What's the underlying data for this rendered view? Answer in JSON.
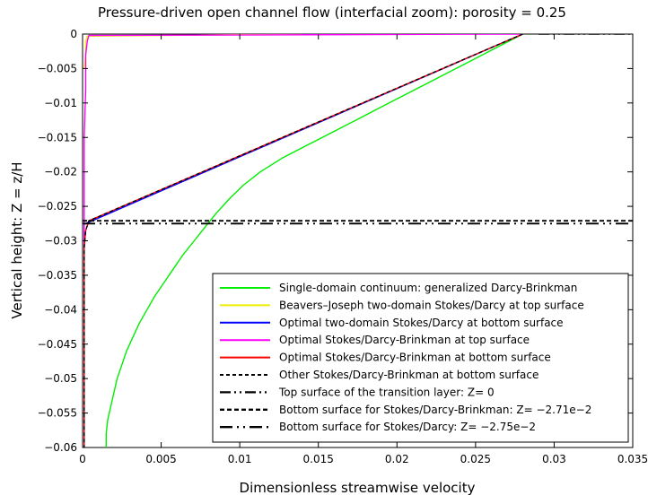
{
  "chart_data": {
    "type": "line",
    "title": "Pressure-driven open channel flow (interfacial zoom): porosity = 0.25",
    "xlabel": "Dimensionless streamwise velocity",
    "ylabel": "Vertical height: Z = z/H",
    "xlim": [
      0,
      0.035
    ],
    "ylim": [
      -0.06,
      0
    ],
    "xticks": [
      0,
      0.005,
      0.01,
      0.015,
      0.02,
      0.025,
      0.03,
      0.035
    ],
    "xtick_labels": [
      "0",
      "0.005",
      "0.01",
      "0.015",
      "0.02",
      "0.025",
      "0.03",
      "0.035"
    ],
    "yticks": [
      0,
      -0.005,
      -0.01,
      -0.015,
      -0.02,
      -0.025,
      -0.03,
      -0.035,
      -0.04,
      -0.045,
      -0.05,
      -0.055,
      -0.06
    ],
    "ytick_labels": [
      "0",
      "−0.005",
      "−0.01",
      "−0.015",
      "−0.02",
      "−0.025",
      "−0.03",
      "−0.035",
      "−0.04",
      "−0.045",
      "−0.05",
      "−0.055",
      "−0.06"
    ],
    "grid": false,
    "legend_position": "bottom-right",
    "series": [
      {
        "name": "Single-domain continuum: generalized Darcy-Brinkman",
        "color": "#00ee00",
        "dash": "solid",
        "width": 1.4,
        "points": [
          [
            0.028,
            0
          ],
          [
            0.0263,
            -0.002
          ],
          [
            0.0246,
            -0.004
          ],
          [
            0.0229,
            -0.006
          ],
          [
            0.0212,
            -0.008
          ],
          [
            0.0195,
            -0.01
          ],
          [
            0.0178,
            -0.012
          ],
          [
            0.0161,
            -0.014
          ],
          [
            0.0144,
            -0.016
          ],
          [
            0.0127,
            -0.018
          ],
          [
            0.0113,
            -0.02
          ],
          [
            0.0102,
            -0.022
          ],
          [
            0.0093,
            -0.024
          ],
          [
            0.0085,
            -0.026
          ],
          [
            0.0078,
            -0.028
          ],
          [
            0.0071,
            -0.03
          ],
          [
            0.0064,
            -0.032
          ],
          [
            0.0058,
            -0.034
          ],
          [
            0.0052,
            -0.036
          ],
          [
            0.0046,
            -0.038
          ],
          [
            0.0041,
            -0.04
          ],
          [
            0.0036,
            -0.042
          ],
          [
            0.0032,
            -0.044
          ],
          [
            0.0028,
            -0.046
          ],
          [
            0.0025,
            -0.048
          ],
          [
            0.0022,
            -0.05
          ],
          [
            0.002,
            -0.052
          ],
          [
            0.0018,
            -0.054
          ],
          [
            0.0016,
            -0.056
          ],
          [
            0.0015,
            -0.058
          ],
          [
            0.0015,
            -0.06
          ]
        ]
      },
      {
        "name": "Beavers–Joseph two-domain Stokes/Darcy at top surface",
        "color": "#eeee00",
        "dash": "solid",
        "width": 1.4,
        "points": [
          [
            0.014,
            0
          ],
          [
            0.0003,
            -0.0003
          ],
          [
            0.0002,
            -0.001
          ],
          [
            0.0002,
            -0.003
          ],
          [
            0.0001,
            -0.005
          ]
        ]
      },
      {
        "name": "Optimal two-domain Stokes/Darcy at bottom surface",
        "color": "#0000ff",
        "dash": "solid",
        "width": 1.4,
        "points": [
          [
            0.028,
            0
          ],
          [
            0.0003,
            -0.0274
          ],
          [
            0.0001,
            -0.0276
          ],
          [
            0.0001,
            -0.06
          ]
        ]
      },
      {
        "name": "Optimal Stokes/Darcy-Brinkman at top surface",
        "color": "#ff00ff",
        "dash": "solid",
        "width": 1.4,
        "points": [
          [
            0.028,
            0
          ],
          [
            0.0004,
            -0.0002
          ],
          [
            0.0003,
            -0.001
          ],
          [
            0.0002,
            -0.003
          ],
          [
            0.0002,
            -0.008
          ],
          [
            0.0001,
            -0.015
          ],
          [
            0.0001,
            -0.027
          ],
          [
            0.0001,
            -0.06
          ]
        ]
      },
      {
        "name": "Optimal Stokes/Darcy-Brinkman at bottom surface",
        "color": "#ff0000",
        "dash": "solid",
        "width": 1.4,
        "points": [
          [
            0.028,
            0
          ],
          [
            0.0004,
            -0.0271
          ],
          [
            0.0002,
            -0.0285
          ],
          [
            0.0001,
            -0.031
          ],
          [
            0.0001,
            -0.06
          ]
        ]
      },
      {
        "name": "Other Stokes/Darcy-Brinkman at bottom surface",
        "color": "#000000",
        "dash": "4,3",
        "width": 1.4,
        "points": [
          [
            0.028,
            0
          ],
          [
            0.0004,
            -0.0271
          ],
          [
            0.0002,
            -0.0285
          ],
          [
            0.0001,
            -0.031
          ],
          [
            0.0001,
            -0.06
          ]
        ]
      },
      {
        "name": "Top surface of the transition layer: Z= 0",
        "color": "#000000",
        "dash": "12,4,2,4,2,4",
        "width": 1.6,
        "points": [
          [
            0.029,
            0
          ],
          [
            0.035,
            0
          ]
        ]
      },
      {
        "name": "Bottom surface for Stokes/Darcy-Brinkman: Z= −2.71e−2",
        "color": "#000000",
        "dash": "5,3",
        "width": 1.8,
        "points": [
          [
            0,
            -0.0271
          ],
          [
            0.035,
            -0.0271
          ]
        ]
      },
      {
        "name": "Bottom surface for Stokes/Darcy: Z= −2.75e−2",
        "color": "#000000",
        "dash": "14,5,2,5,2,5",
        "width": 1.8,
        "points": [
          [
            0,
            -0.0275
          ],
          [
            0.035,
            -0.0275
          ]
        ]
      }
    ]
  }
}
